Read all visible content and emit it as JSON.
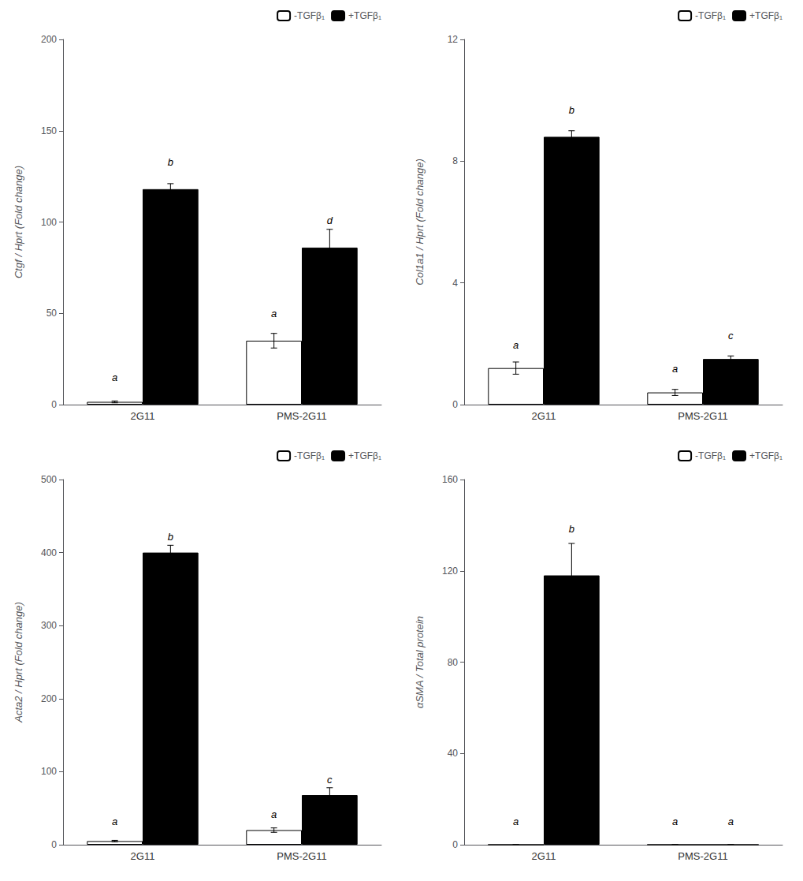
{
  "chart_data": [
    {
      "type": "bar",
      "ylabel": "Ctgf / Hprt (Fold change)",
      "categories": [
        "2G11",
        "PMS-2G11"
      ],
      "ylim": [
        0,
        200
      ],
      "yticks": [
        0,
        50,
        100,
        150,
        200
      ],
      "grid": false,
      "legend": "upper right",
      "series": [
        {
          "name": "-TGFβ₁",
          "color": "white",
          "values": [
            1.5,
            35
          ],
          "errors": [
            0.5,
            4
          ],
          "letters": [
            "a",
            "a"
          ],
          "letters_y": [
            12,
            47
          ]
        },
        {
          "name": "+TGFβ₁",
          "color": "black",
          "values": [
            118,
            86
          ],
          "errors": [
            3,
            10
          ],
          "letters": [
            "b",
            "d"
          ],
          "letters_y": [
            130,
            98
          ]
        }
      ]
    },
    {
      "type": "bar",
      "ylabel": "Col1a1 / Hprt (Fold change)",
      "categories": [
        "2G11",
        "PMS-2G11"
      ],
      "ylim": [
        0,
        12
      ],
      "yticks": [
        0,
        4,
        8,
        12
      ],
      "grid": false,
      "legend": "upper right",
      "series": [
        {
          "name": "-TGFβ₁",
          "color": "white",
          "values": [
            1.2,
            0.4
          ],
          "errors": [
            0.2,
            0.1
          ],
          "letters": [
            "a",
            "a"
          ],
          "letters_y": [
            1.8,
            1.0
          ]
        },
        {
          "name": "+TGFβ₁",
          "color": "black",
          "values": [
            8.8,
            1.5
          ],
          "errors": [
            0.2,
            0.1
          ],
          "letters": [
            "b",
            "c"
          ],
          "letters_y": [
            9.5,
            2.1
          ]
        }
      ]
    },
    {
      "type": "bar",
      "ylabel": "Acta2 / Hprt (Fold change)",
      "categories": [
        "2G11",
        "PMS-2G11"
      ],
      "ylim": [
        0,
        500
      ],
      "yticks": [
        0,
        100,
        200,
        300,
        400,
        500
      ],
      "grid": false,
      "legend": "upper right",
      "series": [
        {
          "name": "-TGFβ₁",
          "color": "white",
          "values": [
            5,
            20
          ],
          "errors": [
            1,
            3
          ],
          "letters": [
            "a",
            "a"
          ],
          "letters_y": [
            25,
            35
          ]
        },
        {
          "name": "+TGFβ₁",
          "color": "black",
          "values": [
            400,
            68
          ],
          "errors": [
            10,
            10
          ],
          "letters": [
            "b",
            "c"
          ],
          "letters_y": [
            415,
            82
          ]
        }
      ]
    },
    {
      "type": "bar",
      "ylabel": "αSMA / Total protein",
      "categories": [
        "2G11",
        "PMS-2G11"
      ],
      "ylim": [
        0,
        160
      ],
      "yticks": [
        0,
        40,
        80,
        120,
        160
      ],
      "grid": false,
      "legend": "upper right",
      "series": [
        {
          "name": "-TGFβ₁",
          "color": "white",
          "values": [
            0,
            0
          ],
          "errors": [
            0,
            0
          ],
          "letters": [
            "a",
            "a"
          ],
          "letters_y": [
            8,
            8
          ]
        },
        {
          "name": "+TGFβ₁",
          "color": "black",
          "values": [
            118,
            0
          ],
          "errors": [
            14,
            0
          ],
          "letters": [
            "b",
            "a"
          ],
          "letters_y": [
            136,
            8
          ]
        }
      ]
    }
  ]
}
